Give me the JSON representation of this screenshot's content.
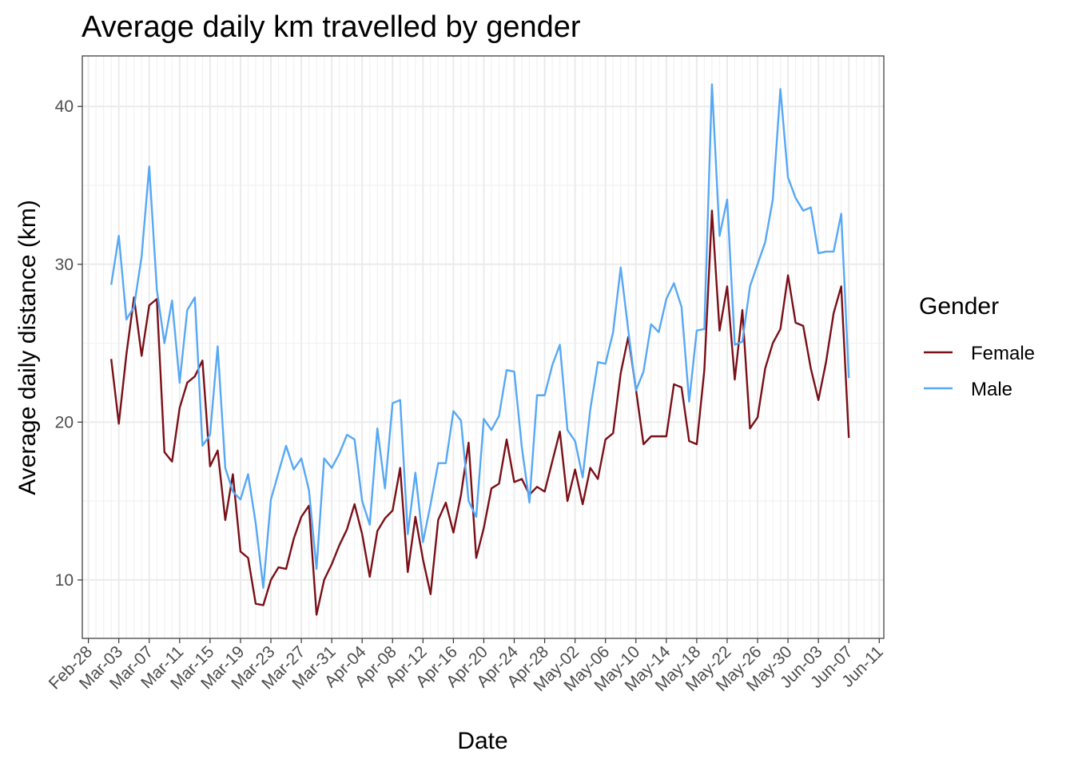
{
  "chart_data": {
    "type": "line",
    "title": "Average daily km travelled by gender",
    "xlabel": "Date",
    "ylabel": "Average daily distance (km)",
    "x_start_date": "2020-03-02",
    "x_tick_labels": [
      "Feb-28",
      "Mar-03",
      "Mar-07",
      "Mar-11",
      "Mar-15",
      "Mar-19",
      "Mar-23",
      "Mar-27",
      "Mar-31",
      "Apr-04",
      "Apr-08",
      "Apr-12",
      "Apr-16",
      "Apr-20",
      "Apr-24",
      "Apr-28",
      "May-02",
      "May-06",
      "May-10",
      "May-14",
      "May-18",
      "May-22",
      "May-26",
      "May-30",
      "Jun-03",
      "Jun-07",
      "Jun-11"
    ],
    "y_ticks": [
      10,
      20,
      30,
      40
    ],
    "ylim": [
      6.3,
      43.2
    ],
    "grid": true,
    "legend": {
      "title": "Gender",
      "position": "right"
    },
    "series": [
      {
        "name": "Female",
        "color": "#7a0f17",
        "values": [
          24.0,
          19.9,
          24.3,
          27.9,
          24.2,
          27.4,
          27.8,
          18.1,
          17.5,
          20.9,
          22.5,
          22.9,
          23.9,
          17.2,
          18.2,
          13.8,
          16.7,
          11.8,
          11.4,
          8.5,
          8.4,
          10.0,
          10.8,
          10.7,
          12.6,
          14.0,
          14.7,
          7.8,
          10.0,
          11.0,
          12.2,
          13.2,
          14.8,
          12.9,
          10.2,
          13.1,
          13.9,
          14.4,
          17.1,
          10.5,
          14.0,
          11.3,
          9.1,
          13.8,
          14.9,
          13.0,
          15.4,
          18.7,
          11.4,
          13.3,
          15.8,
          16.1,
          18.9,
          16.2,
          16.4,
          15.4,
          15.9,
          15.6,
          17.5,
          19.4,
          15.0,
          17.0,
          14.8,
          17.1,
          16.4,
          18.9,
          19.3,
          23.1,
          25.4,
          22.1,
          18.6,
          19.1,
          19.1,
          19.1,
          22.4,
          22.2,
          18.8,
          18.6,
          23.3,
          33.4,
          25.8,
          28.6,
          22.7,
          27.1,
          19.6,
          20.3,
          23.4,
          25.0,
          25.9,
          29.3,
          26.3,
          26.1,
          23.4,
          21.4,
          23.8,
          26.9,
          28.6,
          19.0
        ]
      },
      {
        "name": "Male",
        "color": "#56a8f5",
        "values": [
          28.7,
          31.8,
          26.5,
          27.3,
          30.5,
          36.2,
          28.4,
          25.0,
          27.7,
          22.5,
          27.1,
          27.9,
          18.5,
          19.2,
          24.8,
          17.1,
          15.6,
          15.1,
          16.7,
          13.6,
          9.5,
          15.1,
          16.8,
          18.5,
          17.0,
          17.7,
          15.7,
          10.7,
          17.7,
          17.1,
          18.0,
          19.2,
          18.9,
          15.0,
          13.5,
          19.6,
          15.8,
          21.2,
          21.4,
          12.9,
          16.8,
          12.4,
          14.8,
          17.4,
          17.4,
          20.7,
          20.1,
          15.0,
          14.0,
          20.2,
          19.5,
          20.4,
          23.3,
          23.2,
          18.4,
          14.9,
          21.7,
          21.7,
          23.6,
          24.9,
          19.5,
          18.8,
          16.5,
          20.8,
          23.8,
          23.7,
          25.7,
          29.8,
          25.8,
          22.0,
          23.2,
          26.2,
          25.7,
          27.8,
          28.8,
          27.3,
          21.3,
          25.8,
          25.9,
          41.4,
          31.8,
          34.1,
          24.9,
          25.1,
          28.6,
          30.0,
          31.4,
          34.1,
          41.1,
          35.5,
          34.2,
          33.4,
          33.6,
          30.7,
          30.8,
          30.8,
          33.2,
          22.8
        ]
      }
    ]
  }
}
